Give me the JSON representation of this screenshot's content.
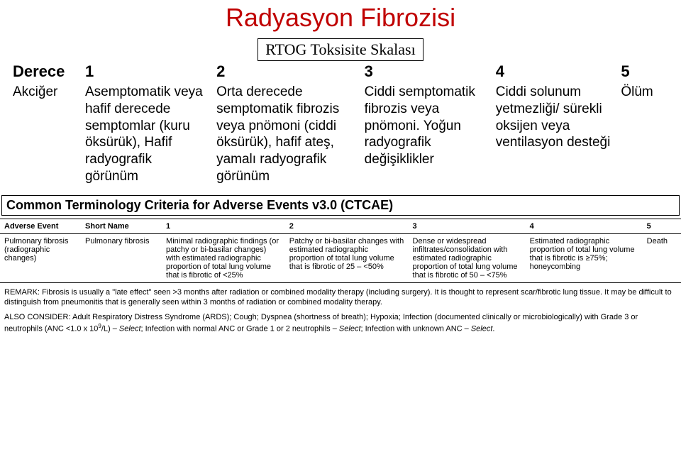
{
  "rtog": {
    "main_title": "Radyasyon Fibrozisi",
    "sub_title": "RTOG Toksisite Skalası",
    "header": {
      "derece": "Derece",
      "c1": "1",
      "c2": "2",
      "c3": "3",
      "c4": "4",
      "c5": "5"
    },
    "row": {
      "label": "Akciğer",
      "c1": "Asemptomatik veya hafif derecede semptomlar (kuru öksürük), Hafif radyografik görünüm",
      "c2": "Orta derecede semptomatik fibrozis veya pnömoni (ciddi öksürük), hafif ateş, yamalı radyografik görünüm",
      "c3": "Ciddi semptomatik fibrozis veya pnömoni. Yoğun radyografik değişiklikler",
      "c4": "Ciddi solunum yetmezliği/ sürekli oksijen veya ventilasyon desteği",
      "c5": "Ölüm"
    }
  },
  "ctcae": {
    "banner": "Common Terminology Criteria for Adverse Events v3.0 (CTCAE)",
    "header": {
      "ae": "Adverse Event",
      "sn": "Short Name",
      "c1": "1",
      "c2": "2",
      "c3": "3",
      "c4": "4",
      "c5": "5"
    },
    "row": {
      "ae": "Pulmonary fibrosis (radiographic changes)",
      "sn": "Pulmonary fibrosis",
      "c1": "Minimal radiographic findings (or patchy or bi-basilar changes) with estimated radiographic proportion of total lung volume that is fibrotic of <25%",
      "c2": "Patchy or bi-basilar changes with estimated radiographic proportion of total lung volume that is fibrotic of 25 – <50%",
      "c3": "Dense or widespread infiltrates/consolidation with estimated radiographic proportion of total lung volume that is fibrotic of 50 – <75%",
      "c4": "Estimated radiographic proportion of total lung volume that is fibrotic is ≥75%; honeycombing",
      "c5": "Death"
    },
    "remark_label": "REMARK:",
    "remark": " Fibrosis is usually a \"late effect\" seen >3 months after radiation or combined modality therapy (including surgery). It is thought to represent scar/fibrotic lung tissue. It may be difficult to distinguish from pneumonitis that is generally seen within 3 months of radiation or combined modality therapy.",
    "also_label": "ALSO CONSIDER:",
    "also_part1": " Adult Respiratory Distress Syndrome (ARDS); Cough; Dyspnea (shortness of breath); Hypoxia; Infection (documented clinically or microbiologically) with Grade 3 or neutrophils (ANC <1.0 x 10",
    "also_sup": "9",
    "also_part2": "/L) – ",
    "also_sel1": "Select",
    "also_part3": "; Infection with normal ANC or Grade 1 or 2 neutrophils – ",
    "also_sel2": "Select",
    "also_part4": "; Infection with unknown ANC – ",
    "also_sel3": "Select",
    "also_part5": "."
  }
}
